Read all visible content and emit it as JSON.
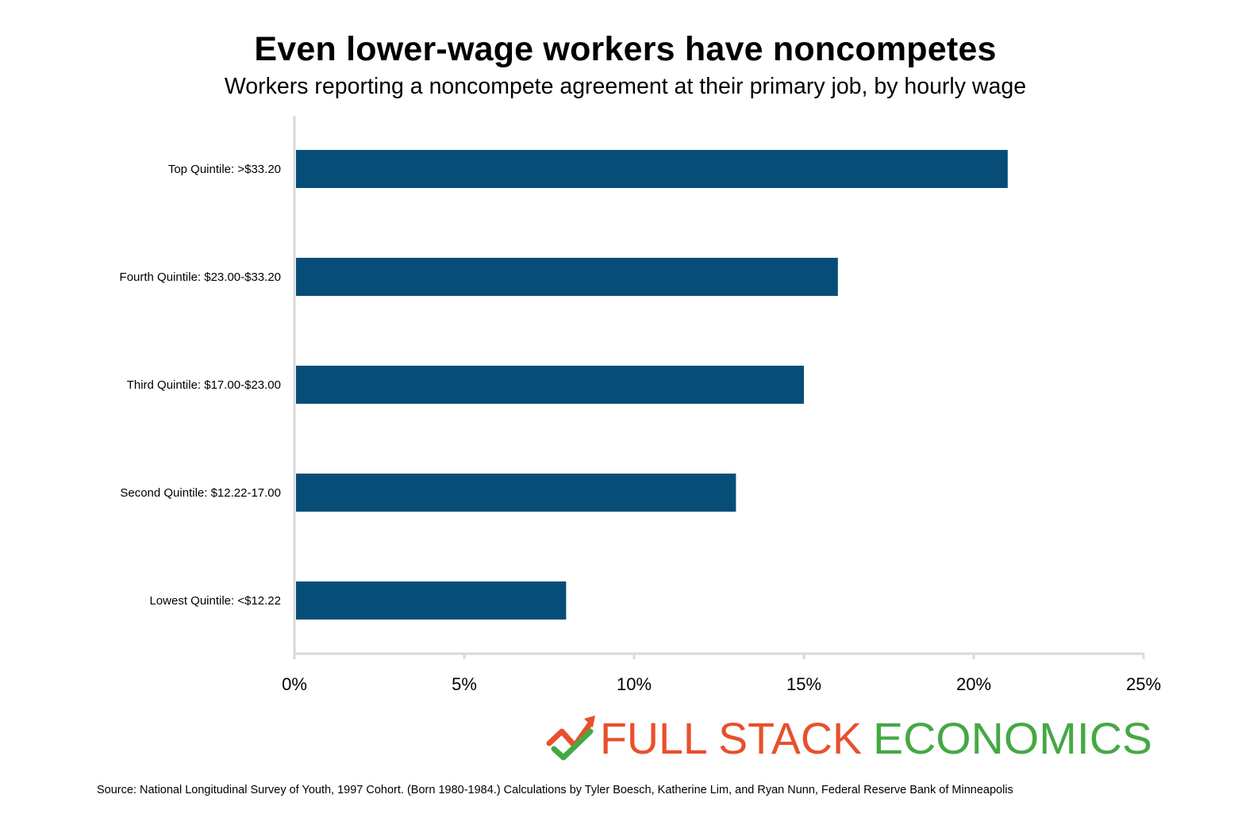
{
  "chart_data": {
    "type": "bar",
    "orientation": "horizontal",
    "title": "Even lower-wage workers have noncompetes",
    "subtitle": "Workers reporting a noncompete agreement at their primary job, by hourly wage",
    "categories": [
      "Top Quintile: >$33.20",
      "Fourth Quintile: $23.00-$33.20",
      "Third Quintile: $17.00-$23.00",
      "Second Quintile: $12.22-17.00",
      "Lowest Quintile: <$12.22"
    ],
    "values": [
      21,
      16,
      15,
      13,
      8
    ],
    "value_unit": "%",
    "xlim": [
      0,
      25
    ],
    "xticks": [
      0,
      5,
      10,
      15,
      20,
      25
    ],
    "xtick_labels": [
      "0%",
      "5%",
      "10%",
      "15%",
      "20%",
      "25%"
    ],
    "xlabel": "",
    "ylabel": "",
    "grid": false,
    "legend": "none",
    "bar_color": "#064E77",
    "axis_color": "#D9D9D9"
  },
  "branding": {
    "logo_word1": "FULL STACK",
    "logo_word2": "ECONOMICS",
    "logo_color1": "#E8502B",
    "logo_color2": "#45A844"
  },
  "source_note": "Source: National Longitudinal Survey of Youth, 1997 Cohort. (Born 1980-1984.) Calculations by Tyler Boesch, Katherine Lim, and Ryan Nunn, Federal Reserve Bank of Minneapolis"
}
